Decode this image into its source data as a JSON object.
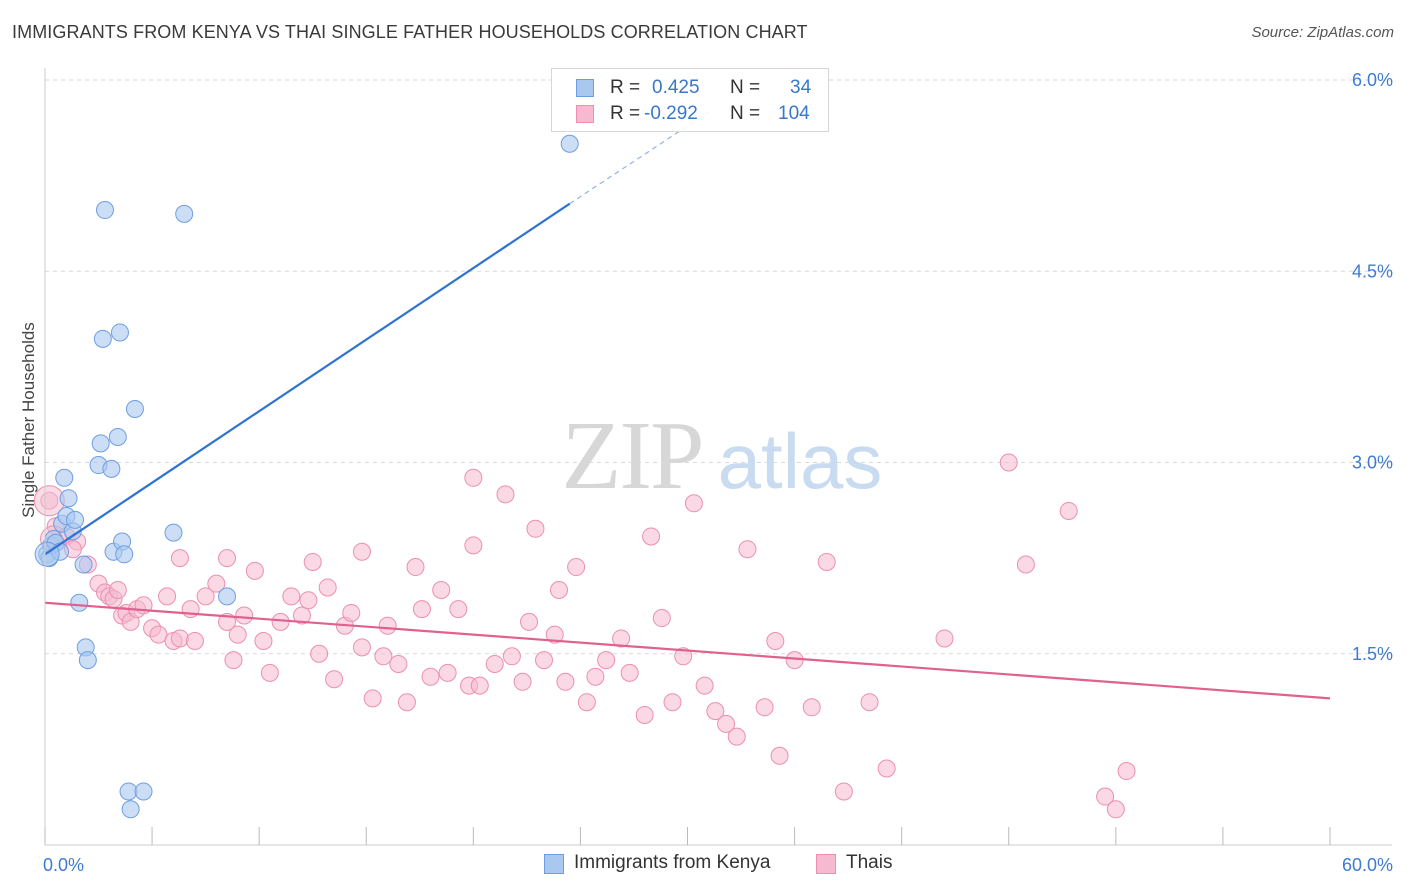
{
  "title": "IMMIGRANTS FROM KENYA VS THAI SINGLE FATHER HOUSEHOLDS CORRELATION CHART",
  "source": "Source: ZipAtlas.com",
  "watermark": {
    "zip": "ZIP",
    "atlas": "atlas"
  },
  "colors": {
    "kenya_fill": "#a9c8f0",
    "kenya_stroke": "#6f9ee0",
    "kenya_line": "#2f73d0",
    "thai_fill": "#f6b9cf",
    "thai_stroke": "#ec8fb0",
    "thai_line": "#e0608e",
    "axis_text": "#3f7bd0",
    "grid": "#d9d9d9"
  },
  "stats": {
    "r_label": "R =",
    "n_label": "N =",
    "kenya": {
      "r": "0.425",
      "n": "34"
    },
    "thai": {
      "r": "-0.292",
      "n": "104"
    }
  },
  "chart_data": {
    "type": "scatter",
    "ylabel": "Single Father Households",
    "xlim": [
      0,
      60
    ],
    "ylim": [
      0,
      6.0
    ],
    "x_tick_labels": [
      "0.0%",
      "60.0%"
    ],
    "y_ticks": [
      1.5,
      3.0,
      4.5,
      6.0
    ],
    "y_tick_labels": [
      "1.5%",
      "3.0%",
      "4.5%",
      "6.0%"
    ],
    "grid": true,
    "legend_position": "top-center",
    "series": [
      {
        "name": "Immigrants from Kenya",
        "points": [
          [
            0.1,
            2.28
          ],
          [
            0.2,
            2.25
          ],
          [
            0.3,
            2.35
          ],
          [
            0.4,
            2.4
          ],
          [
            0.5,
            2.37
          ],
          [
            0.7,
            2.3
          ],
          [
            0.8,
            2.52
          ],
          [
            0.9,
            2.88
          ],
          [
            1.0,
            2.58
          ],
          [
            1.1,
            2.72
          ],
          [
            1.3,
            2.46
          ],
          [
            1.4,
            2.55
          ],
          [
            1.6,
            1.9
          ],
          [
            1.8,
            2.2
          ],
          [
            1.9,
            1.55
          ],
          [
            2.0,
            1.45
          ],
          [
            2.5,
            2.98
          ],
          [
            2.6,
            3.15
          ],
          [
            2.7,
            3.97
          ],
          [
            2.8,
            4.98
          ],
          [
            3.1,
            2.95
          ],
          [
            3.2,
            2.3
          ],
          [
            3.4,
            3.2
          ],
          [
            3.5,
            4.02
          ],
          [
            3.6,
            2.38
          ],
          [
            3.7,
            2.28
          ],
          [
            3.9,
            0.42
          ],
          [
            4.0,
            0.28
          ],
          [
            4.2,
            3.42
          ],
          [
            4.6,
            0.42
          ],
          [
            6.0,
            2.45
          ],
          [
            6.5,
            4.95
          ],
          [
            8.5,
            1.95
          ],
          [
            24.5,
            5.5
          ]
        ],
        "trend": {
          "x0": 0,
          "y0": 2.28,
          "x1": 24.5,
          "y1": 5.03,
          "dashed_to_x": 31,
          "dashed_to_y": 5.75
        }
      },
      {
        "name": "Thais",
        "points": [
          [
            0.2,
            2.7
          ],
          [
            0.5,
            2.5
          ],
          [
            1.0,
            2.42
          ],
          [
            1.5,
            2.38
          ],
          [
            2.0,
            2.2
          ],
          [
            2.5,
            2.05
          ],
          [
            2.8,
            1.98
          ],
          [
            3.0,
            1.95
          ],
          [
            3.2,
            1.93
          ],
          [
            3.4,
            2.0
          ],
          [
            3.6,
            1.8
          ],
          [
            3.8,
            1.82
          ],
          [
            4.0,
            1.75
          ],
          [
            4.3,
            1.85
          ],
          [
            4.6,
            1.88
          ],
          [
            5.0,
            1.7
          ],
          [
            5.3,
            1.65
          ],
          [
            5.7,
            1.95
          ],
          [
            6.0,
            1.6
          ],
          [
            6.3,
            1.62
          ],
          [
            6.8,
            1.85
          ],
          [
            7.0,
            1.6
          ],
          [
            7.5,
            1.95
          ],
          [
            8.0,
            2.05
          ],
          [
            8.5,
            1.75
          ],
          [
            8.8,
            1.45
          ],
          [
            9.0,
            1.65
          ],
          [
            9.3,
            1.8
          ],
          [
            9.8,
            2.15
          ],
          [
            10.2,
            1.6
          ],
          [
            10.5,
            1.35
          ],
          [
            11.0,
            1.75
          ],
          [
            11.5,
            1.95
          ],
          [
            12.0,
            1.8
          ],
          [
            12.5,
            2.22
          ],
          [
            12.8,
            1.5
          ],
          [
            13.2,
            2.02
          ],
          [
            13.5,
            1.3
          ],
          [
            14.0,
            1.72
          ],
          [
            14.3,
            1.82
          ],
          [
            14.8,
            1.55
          ],
          [
            15.3,
            1.15
          ],
          [
            15.8,
            1.48
          ],
          [
            16.0,
            1.72
          ],
          [
            16.5,
            1.42
          ],
          [
            16.9,
            1.12
          ],
          [
            17.3,
            2.18
          ],
          [
            17.6,
            1.85
          ],
          [
            18.0,
            1.32
          ],
          [
            18.5,
            2.0
          ],
          [
            18.8,
            1.35
          ],
          [
            19.3,
            1.85
          ],
          [
            19.8,
            1.25
          ],
          [
            20.0,
            2.35
          ],
          [
            20.3,
            1.25
          ],
          [
            21.0,
            1.42
          ],
          [
            21.5,
            2.75
          ],
          [
            21.8,
            1.48
          ],
          [
            22.3,
            1.28
          ],
          [
            22.6,
            1.75
          ],
          [
            22.9,
            2.48
          ],
          [
            23.3,
            1.45
          ],
          [
            23.8,
            1.65
          ],
          [
            24.0,
            2.0
          ],
          [
            24.3,
            1.28
          ],
          [
            24.8,
            2.18
          ],
          [
            25.3,
            1.12
          ],
          [
            25.7,
            1.32
          ],
          [
            26.2,
            1.45
          ],
          [
            26.9,
            1.62
          ],
          [
            27.3,
            1.35
          ],
          [
            28.0,
            1.02
          ],
          [
            28.3,
            2.42
          ],
          [
            28.8,
            1.78
          ],
          [
            29.3,
            1.12
          ],
          [
            29.8,
            1.48
          ],
          [
            30.3,
            2.68
          ],
          [
            30.8,
            1.25
          ],
          [
            31.3,
            1.05
          ],
          [
            31.8,
            0.95
          ],
          [
            32.3,
            0.85
          ],
          [
            32.8,
            2.32
          ],
          [
            33.6,
            1.08
          ],
          [
            34.3,
            0.7
          ],
          [
            35.0,
            1.45
          ],
          [
            35.8,
            1.08
          ],
          [
            36.5,
            2.22
          ],
          [
            37.3,
            0.42
          ],
          [
            38.5,
            1.12
          ],
          [
            39.3,
            0.6
          ],
          [
            42.0,
            1.62
          ],
          [
            45.0,
            3.0
          ],
          [
            45.8,
            2.2
          ],
          [
            47.8,
            2.62
          ],
          [
            49.5,
            0.38
          ],
          [
            50.0,
            0.28
          ],
          [
            50.5,
            0.58
          ],
          [
            20.0,
            2.88
          ],
          [
            34.1,
            1.6
          ],
          [
            14.8,
            2.3
          ],
          [
            8.5,
            2.25
          ],
          [
            6.3,
            2.25
          ],
          [
            1.3,
            2.32
          ],
          [
            12.3,
            1.92
          ]
        ],
        "trend": {
          "x0": 0,
          "y0": 1.9,
          "x1": 60,
          "y1": 1.15
        }
      }
    ]
  }
}
